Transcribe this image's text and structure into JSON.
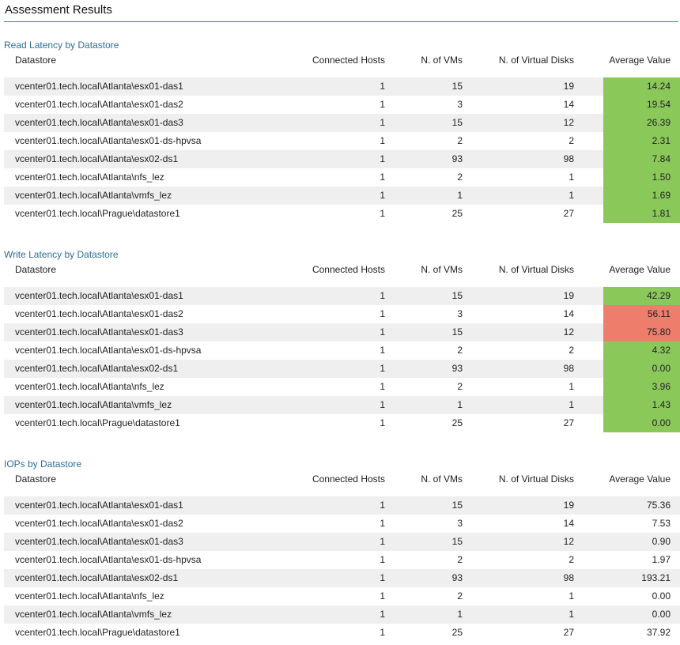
{
  "page": {
    "title": "Assessment Results"
  },
  "colors": {
    "good": "#8bc85a",
    "bad": "#ee7d6c",
    "title_rule": "#3c7f8c",
    "section_title": "#2e6f93"
  },
  "columns": {
    "datastore": "Datastore",
    "hosts": "Connected Hosts",
    "vms": "N. of VMs",
    "disks": "N. of Virtual Disks",
    "avg": "Average Value"
  },
  "sections": [
    {
      "title": "Read Latency by Datastore",
      "rows": [
        {
          "datastore": "vcenter01.tech.local\\Atlanta\\esx01-das1",
          "hosts": "1",
          "vms": "15",
          "disks": "19",
          "avg": "14.24",
          "status": "good"
        },
        {
          "datastore": "vcenter01.tech.local\\Atlanta\\esx01-das2",
          "hosts": "1",
          "vms": "3",
          "disks": "14",
          "avg": "19.54",
          "status": "good"
        },
        {
          "datastore": "vcenter01.tech.local\\Atlanta\\esx01-das3",
          "hosts": "1",
          "vms": "15",
          "disks": "12",
          "avg": "26.39",
          "status": "good"
        },
        {
          "datastore": "vcenter01.tech.local\\Atlanta\\esx01-ds-hpvsa",
          "hosts": "1",
          "vms": "2",
          "disks": "2",
          "avg": "2.31",
          "status": "good"
        },
        {
          "datastore": "vcenter01.tech.local\\Atlanta\\esx02-ds1",
          "hosts": "1",
          "vms": "93",
          "disks": "98",
          "avg": "7.84",
          "status": "good"
        },
        {
          "datastore": "vcenter01.tech.local\\Atlanta\\nfs_lez",
          "hosts": "1",
          "vms": "2",
          "disks": "1",
          "avg": "1.50",
          "status": "good"
        },
        {
          "datastore": "vcenter01.tech.local\\Atlanta\\vmfs_lez",
          "hosts": "1",
          "vms": "1",
          "disks": "1",
          "avg": "1.69",
          "status": "good"
        },
        {
          "datastore": "vcenter01.tech.local\\Prague\\datastore1",
          "hosts": "1",
          "vms": "25",
          "disks": "27",
          "avg": "1.81",
          "status": "good"
        }
      ]
    },
    {
      "title": "Write Latency by Datastore",
      "rows": [
        {
          "datastore": "vcenter01.tech.local\\Atlanta\\esx01-das1",
          "hosts": "1",
          "vms": "15",
          "disks": "19",
          "avg": "42.29",
          "status": "good"
        },
        {
          "datastore": "vcenter01.tech.local\\Atlanta\\esx01-das2",
          "hosts": "1",
          "vms": "3",
          "disks": "14",
          "avg": "56.11",
          "status": "bad"
        },
        {
          "datastore": "vcenter01.tech.local\\Atlanta\\esx01-das3",
          "hosts": "1",
          "vms": "15",
          "disks": "12",
          "avg": "75.80",
          "status": "bad"
        },
        {
          "datastore": "vcenter01.tech.local\\Atlanta\\esx01-ds-hpvsa",
          "hosts": "1",
          "vms": "2",
          "disks": "2",
          "avg": "4.32",
          "status": "good"
        },
        {
          "datastore": "vcenter01.tech.local\\Atlanta\\esx02-ds1",
          "hosts": "1",
          "vms": "93",
          "disks": "98",
          "avg": "0.00",
          "status": "good"
        },
        {
          "datastore": "vcenter01.tech.local\\Atlanta\\nfs_lez",
          "hosts": "1",
          "vms": "2",
          "disks": "1",
          "avg": "3.96",
          "status": "good"
        },
        {
          "datastore": "vcenter01.tech.local\\Atlanta\\vmfs_lez",
          "hosts": "1",
          "vms": "1",
          "disks": "1",
          "avg": "1.43",
          "status": "good"
        },
        {
          "datastore": "vcenter01.tech.local\\Prague\\datastore1",
          "hosts": "1",
          "vms": "25",
          "disks": "27",
          "avg": "0.00",
          "status": "good"
        }
      ]
    },
    {
      "title": "IOPs by Datastore",
      "rows": [
        {
          "datastore": "vcenter01.tech.local\\Atlanta\\esx01-das1",
          "hosts": "1",
          "vms": "15",
          "disks": "19",
          "avg": "75.36",
          "status": "none"
        },
        {
          "datastore": "vcenter01.tech.local\\Atlanta\\esx01-das2",
          "hosts": "1",
          "vms": "3",
          "disks": "14",
          "avg": "7.53",
          "status": "none"
        },
        {
          "datastore": "vcenter01.tech.local\\Atlanta\\esx01-das3",
          "hosts": "1",
          "vms": "15",
          "disks": "12",
          "avg": "0.90",
          "status": "none"
        },
        {
          "datastore": "vcenter01.tech.local\\Atlanta\\esx01-ds-hpvsa",
          "hosts": "1",
          "vms": "2",
          "disks": "2",
          "avg": "1.97",
          "status": "none"
        },
        {
          "datastore": "vcenter01.tech.local\\Atlanta\\esx02-ds1",
          "hosts": "1",
          "vms": "93",
          "disks": "98",
          "avg": "193.21",
          "status": "none"
        },
        {
          "datastore": "vcenter01.tech.local\\Atlanta\\nfs_lez",
          "hosts": "1",
          "vms": "2",
          "disks": "1",
          "avg": "0.00",
          "status": "none"
        },
        {
          "datastore": "vcenter01.tech.local\\Atlanta\\vmfs_lez",
          "hosts": "1",
          "vms": "1",
          "disks": "1",
          "avg": "0.00",
          "status": "none"
        },
        {
          "datastore": "vcenter01.tech.local\\Prague\\datastore1",
          "hosts": "1",
          "vms": "25",
          "disks": "27",
          "avg": "37.92",
          "status": "none"
        }
      ]
    }
  ]
}
